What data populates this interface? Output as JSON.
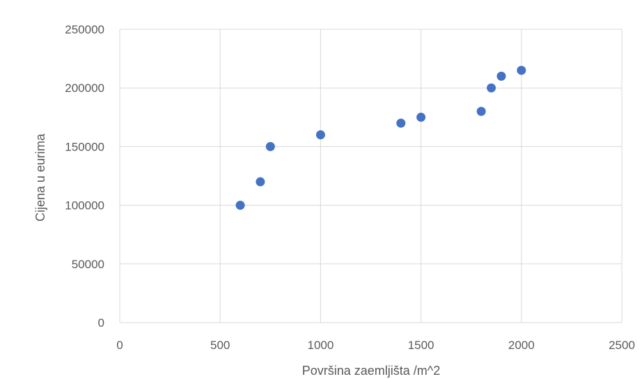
{
  "chart_data": {
    "type": "scatter",
    "xlabel": "Površina zaemljišta /m^2",
    "ylabel": "Cijena u eurima",
    "xlim": [
      0,
      2500
    ],
    "ylim": [
      0,
      250000
    ],
    "x_ticks": [
      "0",
      "500",
      "1000",
      "1500",
      "2000",
      "2500"
    ],
    "y_ticks": [
      "0",
      "50000",
      "100000",
      "150000",
      "200000",
      "250000"
    ],
    "grid": true,
    "legend": "none",
    "color": "#4472c4",
    "series": [
      {
        "points": [
          {
            "x": 600,
            "y": 100000
          },
          {
            "x": 700,
            "y": 120000
          },
          {
            "x": 750,
            "y": 150000
          },
          {
            "x": 1000,
            "y": 160000
          },
          {
            "x": 1400,
            "y": 170000
          },
          {
            "x": 1500,
            "y": 175000
          },
          {
            "x": 1800,
            "y": 180000
          },
          {
            "x": 1850,
            "y": 200000
          },
          {
            "x": 1900,
            "y": 210000
          },
          {
            "x": 2000,
            "y": 215000
          }
        ]
      }
    ]
  }
}
